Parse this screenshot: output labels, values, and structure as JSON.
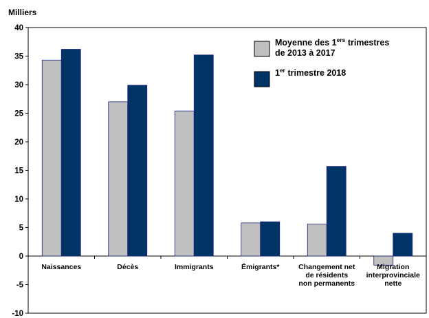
{
  "chart_data": {
    "type": "bar",
    "unit_label": "Milliers",
    "categories": [
      [
        "Naissances"
      ],
      [
        "Décès"
      ],
      [
        "Immigrants"
      ],
      [
        "Émigrants*"
      ],
      [
        "Changement net",
        "de résidents",
        "non permanents"
      ],
      [
        "Migration",
        "interprovinciale",
        "nette"
      ]
    ],
    "series": [
      {
        "name": "Moyenne des 1ers trimestres de 2013 à 2017",
        "legend_lines": [
          [
            "Moyenne des 1",
            "ers",
            " trimestres"
          ],
          [
            "de 2013 à 2017",
            "",
            ""
          ]
        ],
        "color": "#c0c0c0",
        "values": [
          34.3,
          27.0,
          25.4,
          5.8,
          5.6,
          -1.6
        ]
      },
      {
        "name": "1er trimestre 2018",
        "legend_lines": [
          [
            "1",
            "er",
            " trimestre 2018"
          ]
        ],
        "color": "#003366",
        "values": [
          36.2,
          29.9,
          35.2,
          6.0,
          15.7,
          4.0
        ]
      }
    ],
    "ylim": [
      -10,
      40
    ],
    "yticks": [
      -10,
      -5,
      0,
      5,
      10,
      15,
      20,
      25,
      30,
      35,
      40
    ],
    "grid": false,
    "legend_position": "top-right"
  }
}
